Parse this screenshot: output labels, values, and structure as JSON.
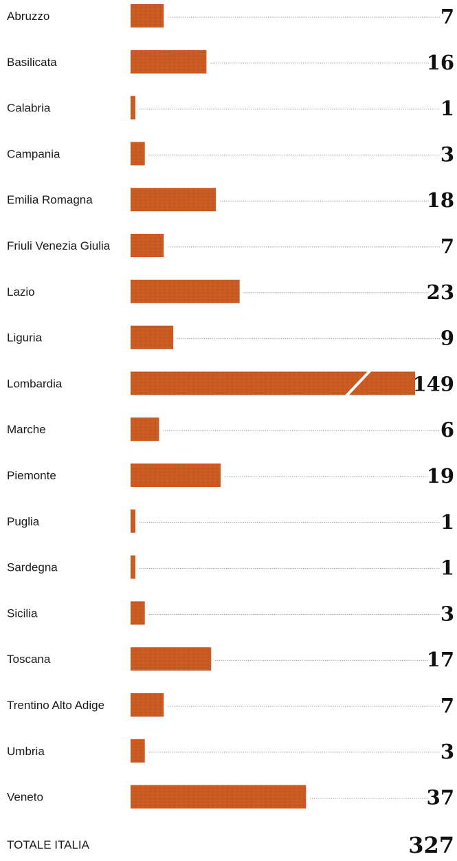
{
  "chart_data": {
    "type": "bar",
    "orientation": "horizontal",
    "categories": [
      "Abruzzo",
      "Basilicata",
      "Calabria",
      "Campania",
      "Emilia Romagna",
      "Friuli Venezia Giulia",
      "Lazio",
      "Liguria",
      "Lombardia",
      "Marche",
      "Piemonte",
      "Puglia",
      "Sardegna",
      "Sicilia",
      "Toscana",
      "Trentino Alto Adige",
      "Umbria",
      "Veneto"
    ],
    "values": [
      7,
      16,
      1,
      3,
      18,
      7,
      23,
      9,
      149,
      6,
      19,
      1,
      1,
      3,
      17,
      7,
      3,
      37
    ],
    "axis_break_on": "Lombardia",
    "total": {
      "label": "TOTALE ITALIA",
      "value": 327
    },
    "grid": false,
    "legend": "none",
    "colors": {
      "bar": "#c95a22",
      "bar_dark": "#a8441a",
      "leader": "#8a8a8a",
      "text": "#1a1a1a",
      "background": "#ffffff"
    }
  }
}
